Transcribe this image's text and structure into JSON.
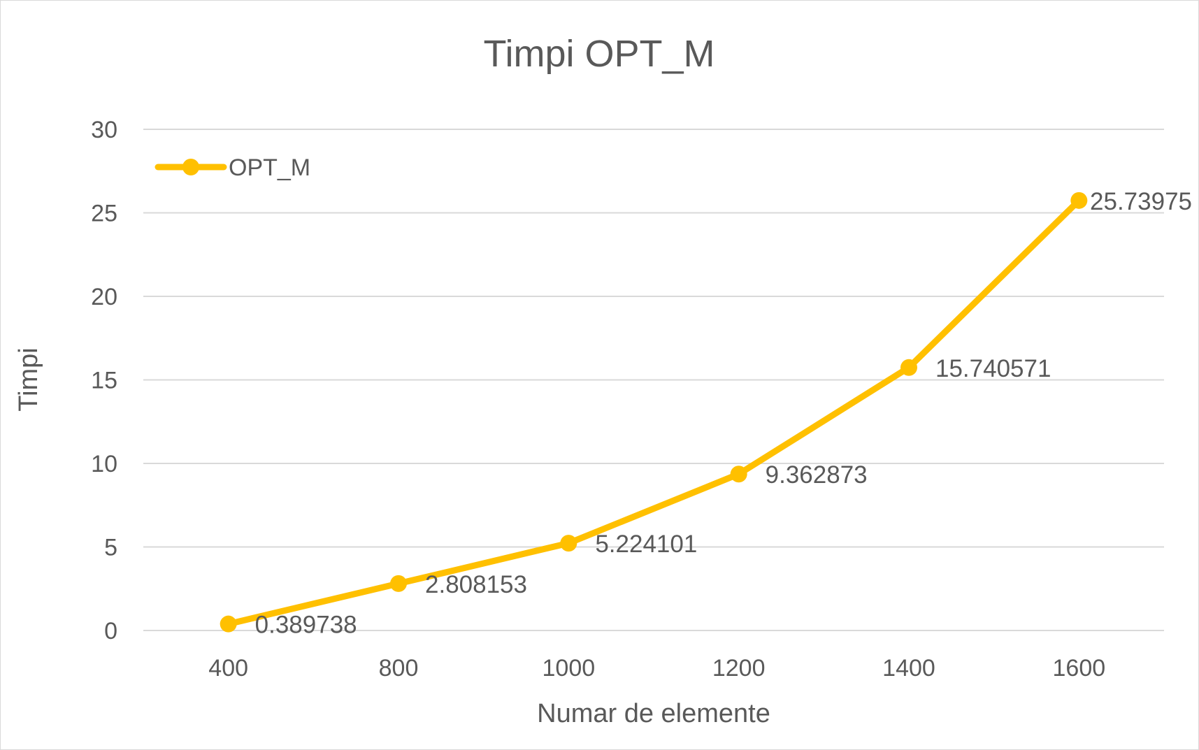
{
  "chart_data": {
    "type": "line",
    "title": "Timpi OPT_M",
    "xlabel": "Numar de elemente",
    "ylabel": "Timpi",
    "categories": [
      "400",
      "800",
      "1000",
      "1200",
      "1400",
      "1600"
    ],
    "series": [
      {
        "name": "OPT_M",
        "values": [
          0.389738,
          2.808153,
          5.224101,
          9.362873,
          15.740571,
          25.73975
        ],
        "labels": [
          "0.389738",
          "2.808153",
          "5.224101",
          "9.362873",
          "15.740571",
          "25.73975"
        ],
        "color": "#FFC000"
      }
    ],
    "ylim": [
      0,
      30
    ],
    "yticks": [
      "0",
      "5",
      "10",
      "15",
      "20",
      "25",
      "30"
    ],
    "grid": "horizontal",
    "legend": "top-left",
    "data_labels": "right"
  },
  "colors": {
    "series": "#FFC000",
    "grid": "#d9d9d9",
    "text": "#595959",
    "border": "#d9d9d9"
  }
}
